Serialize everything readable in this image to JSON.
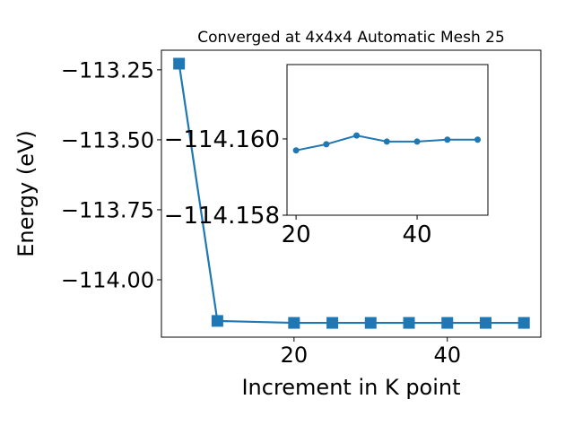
{
  "chart_data": [
    {
      "type": "line",
      "title": "Converged at 4x4x4 Automatic Mesh 25",
      "x_label": "Increment in K point",
      "y_label": "Energy (eV)",
      "x": [
        5,
        10,
        20,
        25,
        30,
        35,
        40,
        45,
        50
      ],
      "series": [
        {
          "color": "#1f77b4",
          "marker": "square",
          "values": [
            -113.228,
            -114.147,
            -114.154,
            -114.154,
            -114.154,
            -114.154,
            -114.154,
            -114.154,
            -114.154
          ]
        }
      ],
      "xlim": [
        2.7,
        52.2
      ],
      "xticks": [
        20,
        40
      ],
      "ylim": [
        -114.205,
        -113.18
      ],
      "yticks": [
        {
          "value": -113.25,
          "label": "−113.25"
        },
        {
          "value": -113.5,
          "label": "−113.50"
        },
        {
          "value": -113.75,
          "label": "−113.75"
        },
        {
          "value": -114.0,
          "label": "−114.00"
        }
      ]
    },
    {
      "type": "line",
      "x": [
        20,
        25,
        30,
        35,
        40,
        45,
        50
      ],
      "series": [
        {
          "color": "#1f77b4",
          "marker": "circle",
          "values": [
            -114.1597,
            -114.15986,
            -114.16009,
            -114.15993,
            -114.15993,
            -114.15998,
            -114.15998
          ]
        }
      ],
      "xlim": [
        18.5,
        51.7
      ],
      "xticks": [
        20,
        40
      ],
      "ylim": [
        -114.158,
        -114.16195
      ],
      "yticks": [
        {
          "value": -114.16,
          "label": "−114.160"
        },
        {
          "value": -114.158,
          "label": "−114.158"
        }
      ]
    }
  ]
}
